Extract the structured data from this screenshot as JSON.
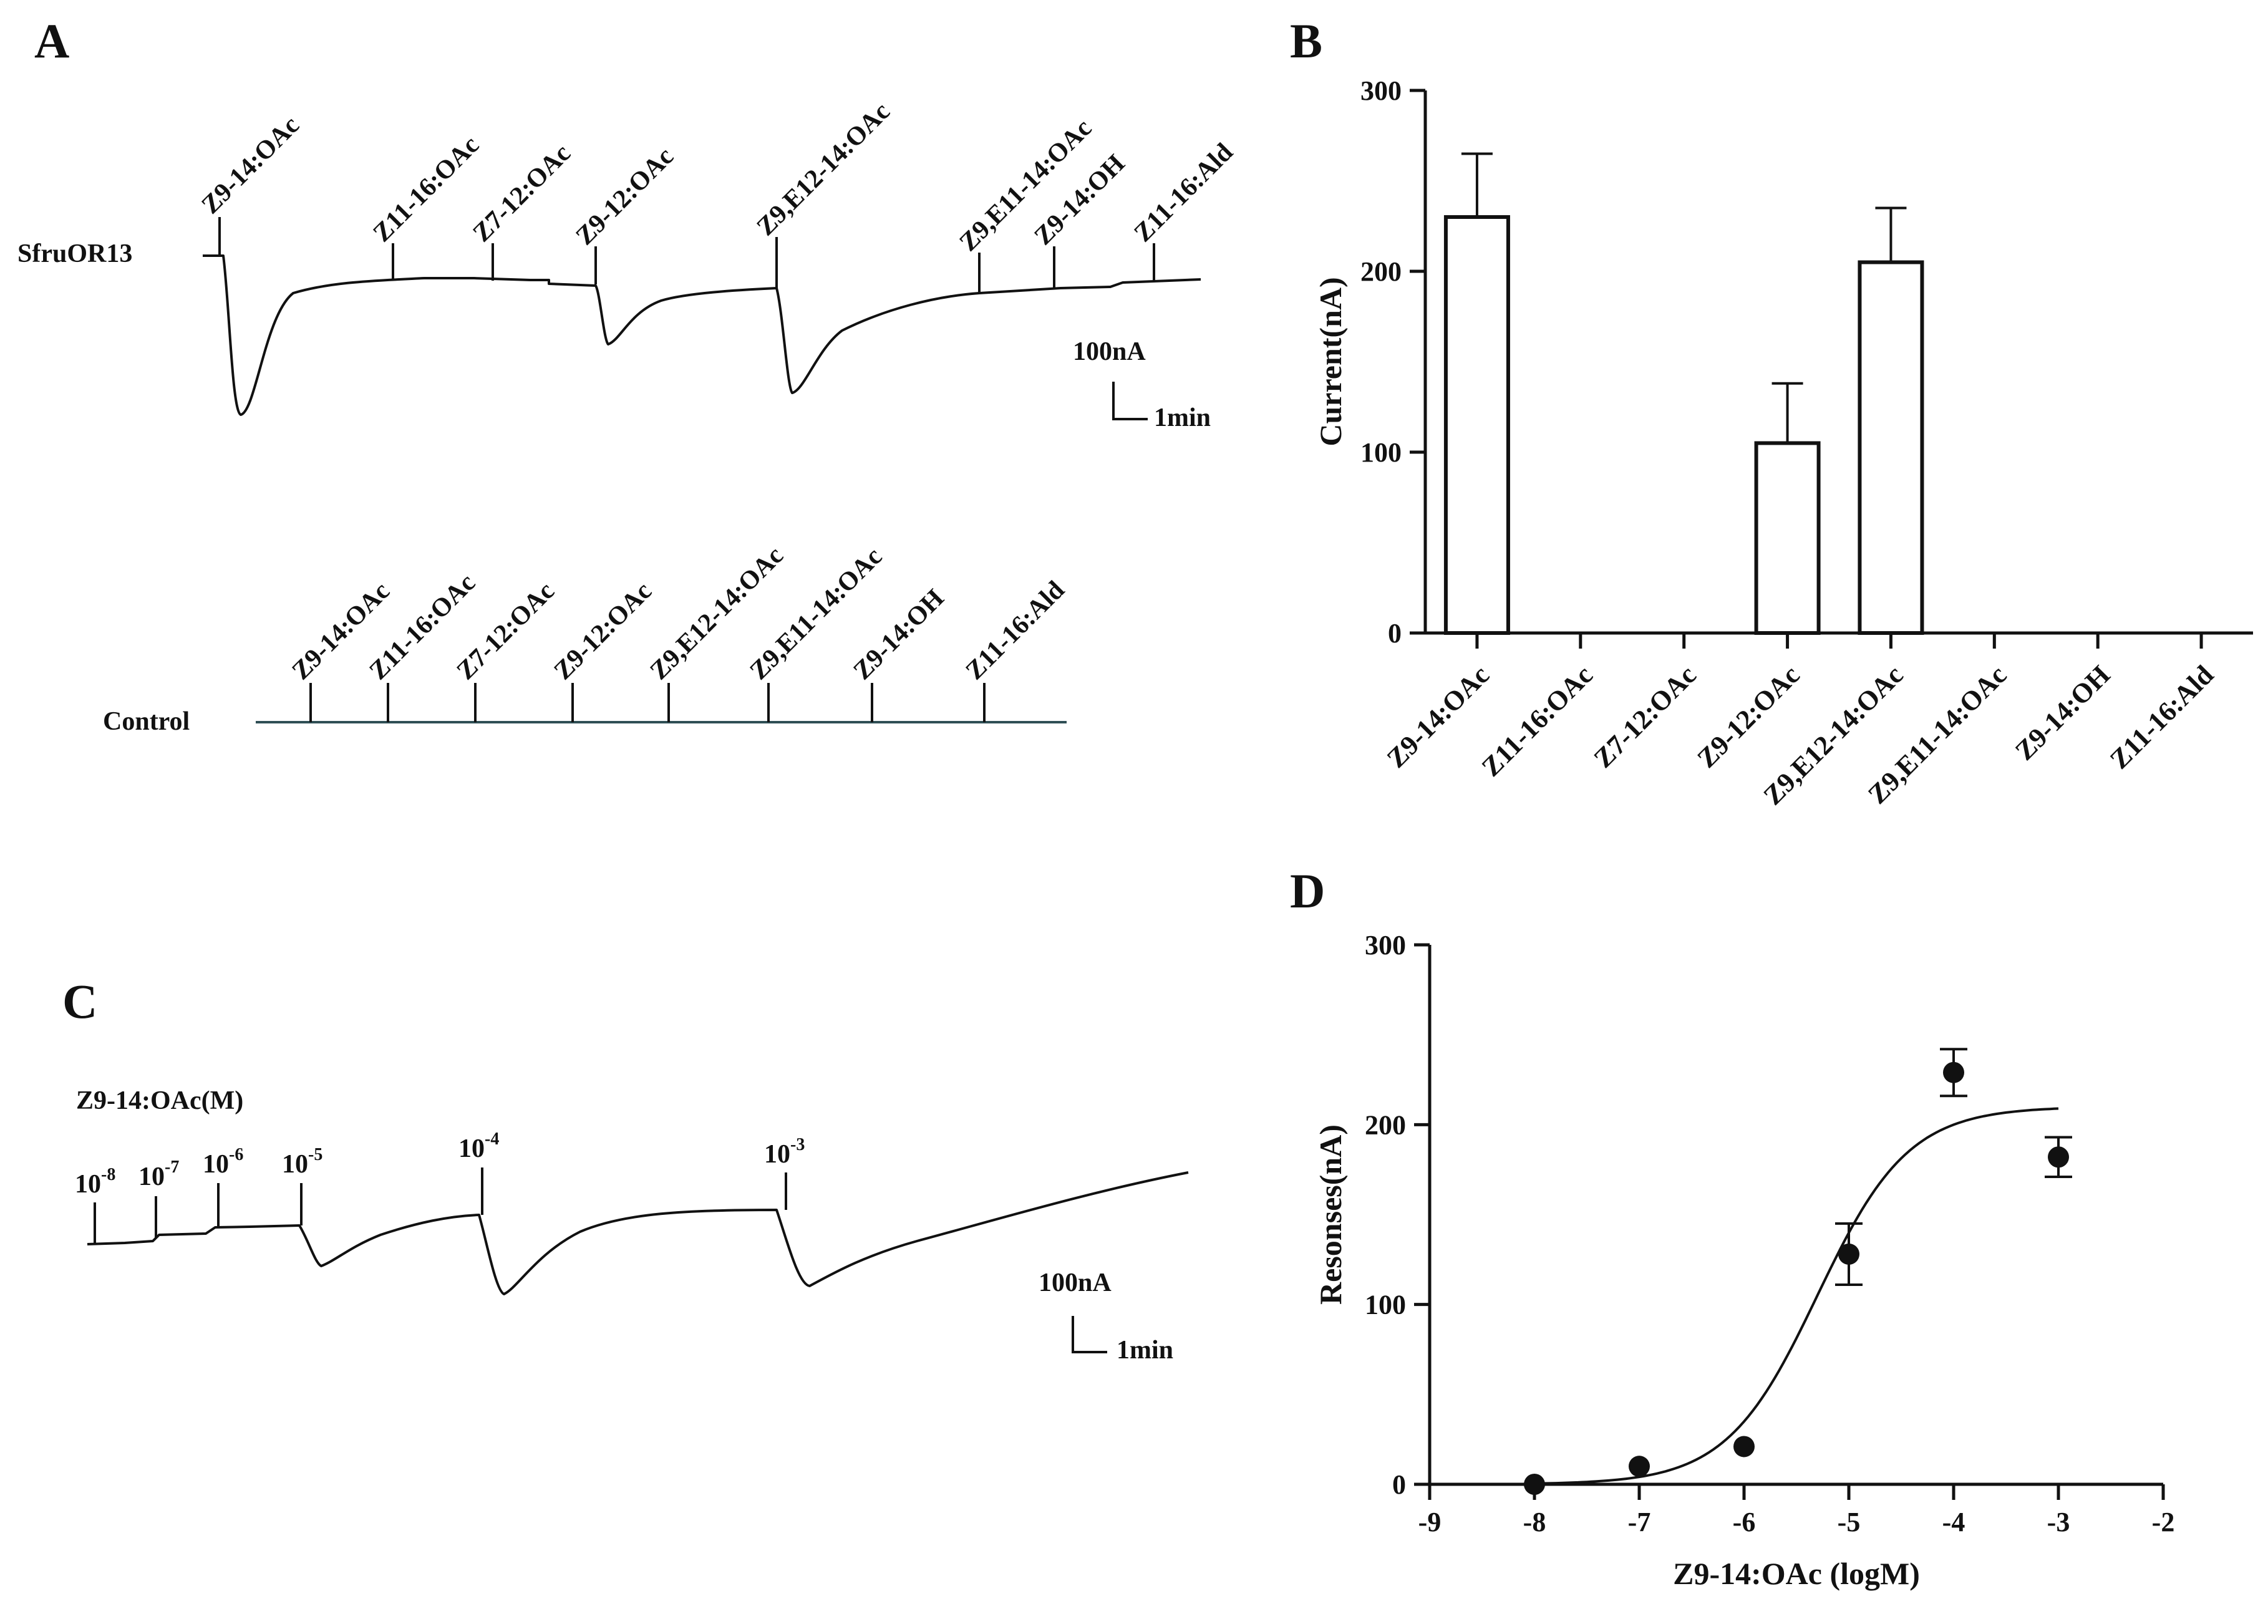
{
  "panels": {
    "a": "A",
    "b": "B",
    "c": "C",
    "d": "D"
  },
  "panelA": {
    "receptor_label": "SfruOR13",
    "control_label": "Control",
    "compounds": [
      "Z9-14:OAc",
      "Z11-16:OAc",
      "Z7-12:OAc",
      "Z9-12:OAc",
      "Z9,E12-14:OAc",
      "Z9,E11-14:OAc",
      "Z9-14:OH",
      "Z11-16:Ald"
    ],
    "scale_current": "100nA",
    "scale_time": "1min"
  },
  "panelC": {
    "title": "Z9-14:OAc(M)",
    "doses": [
      {
        "base": "10",
        "exp": "-8"
      },
      {
        "base": "10",
        "exp": "-7"
      },
      {
        "base": "10",
        "exp": "-6"
      },
      {
        "base": "10",
        "exp": "-5"
      },
      {
        "base": "10",
        "exp": "-4"
      },
      {
        "base": "10",
        "exp": "-3"
      }
    ],
    "scale_current": "100nA",
    "scale_time": "1min"
  },
  "chart_data": [
    {
      "type": "bar",
      "panel": "B",
      "categories": [
        "Z9-14:OAc",
        "Z11-16:OAc",
        "Z7-12:OAc",
        "Z9-12:OAc",
        "Z9,E12-14:OAc",
        "Z9,E11-14:OAc",
        "Z9-14:OH",
        "Z11-16:Ald"
      ],
      "values": [
        230,
        0,
        0,
        105,
        205,
        0,
        0,
        0
      ],
      "errors": [
        35,
        0,
        0,
        33,
        30,
        0,
        0,
        0
      ],
      "ylabel": "Current(nA)",
      "ylim": [
        0,
        300
      ],
      "yticks": [
        0,
        100,
        200,
        300
      ]
    },
    {
      "type": "scatter",
      "panel": "D",
      "x": [
        -8,
        -7,
        -6,
        -5,
        -4,
        -3
      ],
      "y": [
        0,
        10,
        21,
        128,
        229,
        182
      ],
      "errors": [
        0,
        0,
        0,
        17,
        13,
        11
      ],
      "fit": {
        "model": "sigmoid",
        "bottom": 0,
        "top": 210,
        "logEC50": -5.3,
        "hill": 1.0,
        "x_range": [
          -8,
          -3
        ]
      },
      "xlabel": "Z9-14:OAc (logM)",
      "ylabel": "Resonses(nA)",
      "xlim": [
        -9,
        -2
      ],
      "ylim": [
        0,
        300
      ],
      "xticks": [
        -9,
        -8,
        -7,
        -6,
        -5,
        -4,
        -3,
        -2
      ],
      "yticks": [
        0,
        100,
        200,
        300
      ]
    }
  ]
}
